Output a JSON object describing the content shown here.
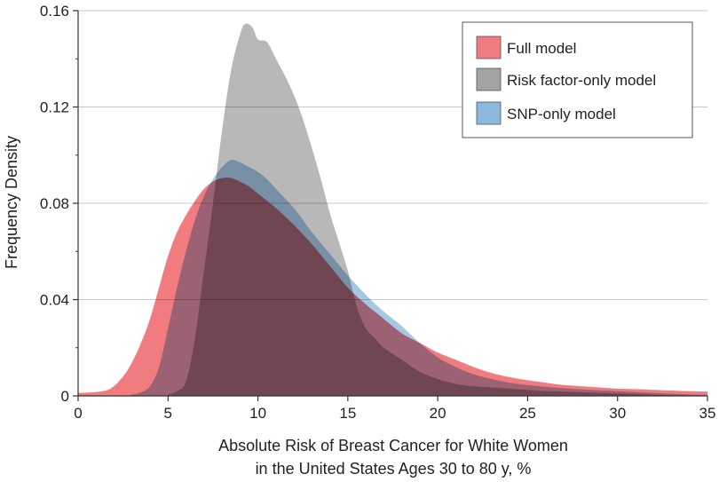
{
  "chart_data": {
    "type": "area",
    "xlabel_lines": [
      "Absolute Risk of Breast Cancer for White Women",
      "in the United States Ages 30 to 80 y, %"
    ],
    "ylabel": "Frequency Density",
    "xlim": [
      0,
      35
    ],
    "ylim": [
      0,
      0.16
    ],
    "x_ticks": [
      0,
      5,
      10,
      15,
      20,
      25,
      30,
      35
    ],
    "y_ticks": [
      0,
      0.04,
      0.08,
      0.12,
      0.16
    ],
    "y_tick_labels": [
      "0",
      "0.04",
      "0.08",
      "0.12",
      "0.16"
    ],
    "grid": "horizontal",
    "legend_position": "top-right",
    "series": [
      {
        "name": "Full model",
        "color": "#f07c80",
        "x": [
          0,
          1,
          1.8,
          2.5,
          3,
          3.5,
          4,
          4.5,
          5,
          5.5,
          6,
          6.5,
          7,
          7.5,
          8,
          8.5,
          9,
          9.5,
          10,
          11,
          12,
          13,
          14,
          15,
          16,
          17,
          18,
          19,
          20,
          21,
          22,
          23,
          24,
          25,
          26,
          27,
          28,
          29,
          30,
          31,
          32,
          33,
          34,
          35
        ],
        "values": [
          0.0012,
          0.0016,
          0.003,
          0.008,
          0.014,
          0.022,
          0.032,
          0.045,
          0.058,
          0.068,
          0.075,
          0.081,
          0.086,
          0.089,
          0.0905,
          0.0905,
          0.089,
          0.087,
          0.084,
          0.078,
          0.071,
          0.063,
          0.054,
          0.045,
          0.038,
          0.032,
          0.026,
          0.022,
          0.018,
          0.015,
          0.012,
          0.0095,
          0.0078,
          0.0065,
          0.0055,
          0.0045,
          0.004,
          0.0035,
          0.003,
          0.0028,
          0.0025,
          0.0022,
          0.002,
          0.0018
        ]
      },
      {
        "name": "Risk factor-only model",
        "color": "#a4a4a4",
        "x": [
          0,
          4.5,
          5,
          5.5,
          6,
          6.5,
          7,
          7.5,
          8,
          8.5,
          9,
          9.3,
          9.7,
          10,
          10.5,
          11,
          11.5,
          12,
          12.5,
          13,
          13.5,
          14,
          14.5,
          15,
          15.5,
          16,
          16.5,
          17,
          18,
          19,
          20,
          21,
          22,
          23,
          24,
          25,
          26,
          27,
          28,
          29,
          30,
          31,
          32,
          33,
          34,
          35
        ],
        "values": [
          0,
          0,
          0.0005,
          0.002,
          0.006,
          0.024,
          0.052,
          0.08,
          0.11,
          0.135,
          0.15,
          0.1545,
          0.153,
          0.148,
          0.147,
          0.14,
          0.133,
          0.125,
          0.115,
          0.103,
          0.09,
          0.076,
          0.064,
          0.052,
          0.037,
          0.028,
          0.024,
          0.02,
          0.015,
          0.01,
          0.007,
          0.005,
          0.004,
          0.0035,
          0.003,
          0.0025,
          0.002,
          0.0018,
          0.0015,
          0.0012,
          0.001,
          0.0008,
          0.0005,
          0.0003,
          0.0002,
          0.0001
        ]
      },
      {
        "name": "SNP-only model",
        "color": "#8db8de",
        "x": [
          0,
          2.5,
          3,
          3.5,
          4,
          4.5,
          5,
          5.5,
          6,
          6.5,
          7,
          7.5,
          8,
          8.5,
          9,
          9.5,
          10,
          10.5,
          11,
          12,
          13,
          14,
          15,
          16,
          17,
          18,
          19,
          20,
          21,
          22,
          23,
          24,
          25,
          26,
          27,
          28,
          29,
          30,
          31,
          32,
          33,
          34,
          35
        ],
        "values": [
          0,
          0,
          0.0005,
          0.0015,
          0.004,
          0.012,
          0.028,
          0.045,
          0.06,
          0.073,
          0.083,
          0.09,
          0.095,
          0.098,
          0.097,
          0.095,
          0.093,
          0.09,
          0.086,
          0.078,
          0.068,
          0.059,
          0.05,
          0.042,
          0.035,
          0.029,
          0.022,
          0.016,
          0.012,
          0.009,
          0.007,
          0.0055,
          0.0045,
          0.0038,
          0.0032,
          0.0027,
          0.0023,
          0.002,
          0.0016,
          0.0012,
          0.0009,
          0.0006,
          0.0004
        ]
      }
    ]
  }
}
